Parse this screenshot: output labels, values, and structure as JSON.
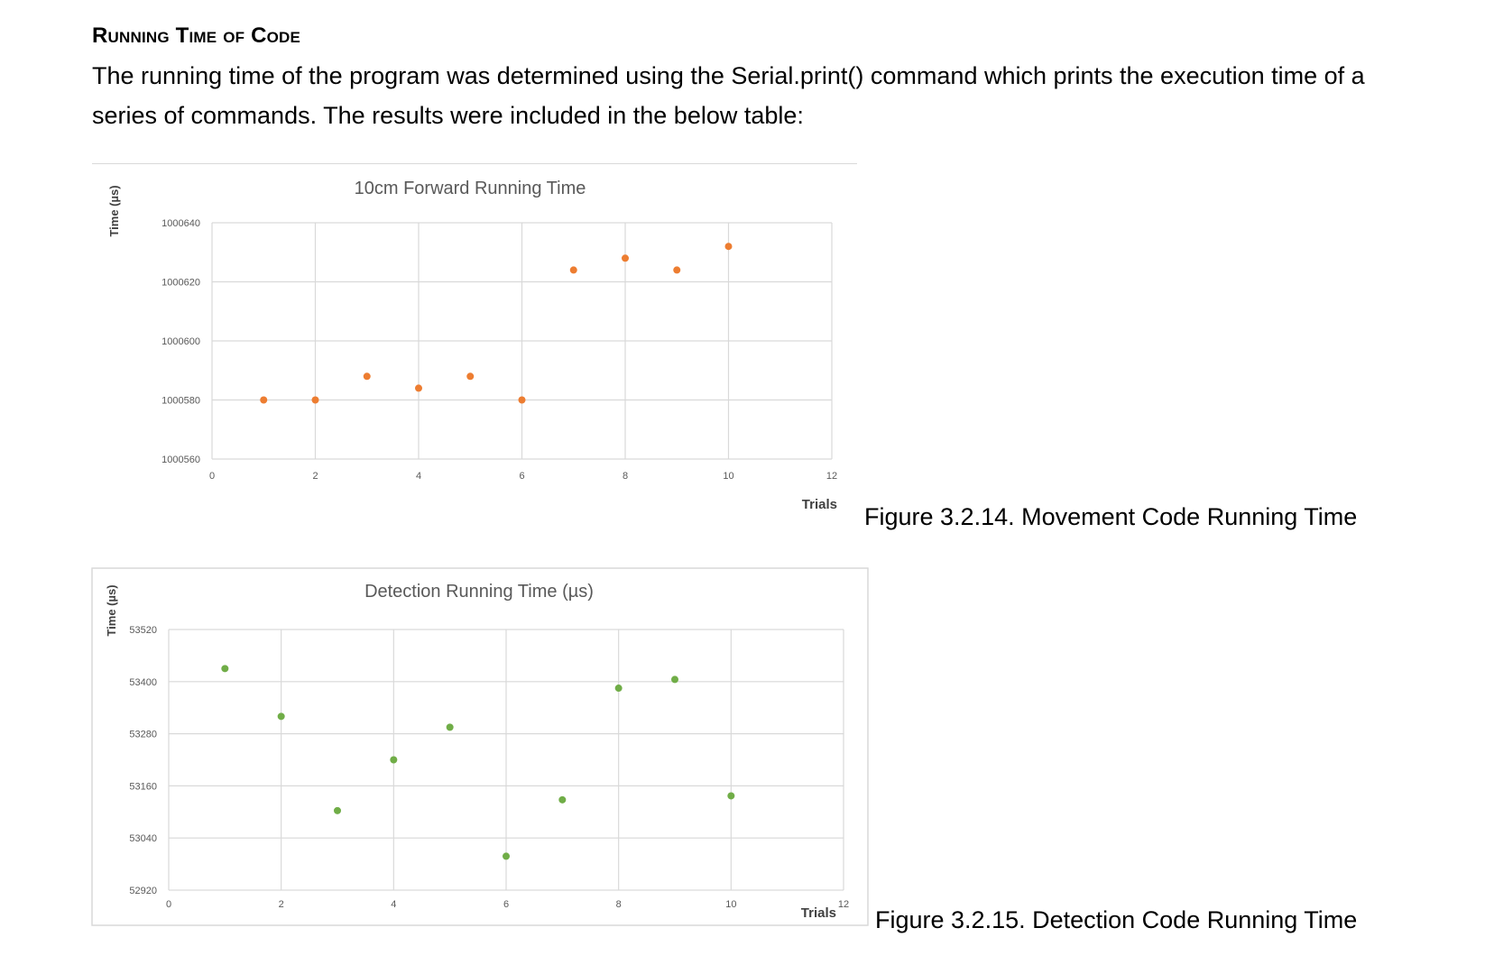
{
  "section": {
    "title": "Running Time of Code"
  },
  "intro": "The running time of the program was determined using the Serial.print() command which prints the execution time of a series of commands. The results were included in the below table:",
  "captions": {
    "figure1": "Figure 3.2.14. Movement Code Running Time",
    "figure2": "Figure 3.2.15. Detection Code Running Time"
  },
  "colors": {
    "series1": "#ED7D31",
    "series2": "#70AD47",
    "grid": "#d9d9d9",
    "axisText": "#595959"
  },
  "chart_data": [
    {
      "type": "scatter",
      "title": "10cm Forward Running Time",
      "xlabel": "Trials",
      "ylabel": "Time (µs)",
      "xlim": [
        0,
        12
      ],
      "ylim": [
        1000560,
        1000640
      ],
      "xticks": [
        0,
        2,
        4,
        6,
        8,
        10,
        12
      ],
      "yticks": [
        1000560,
        1000580,
        1000600,
        1000620,
        1000640
      ],
      "grid": true,
      "legend": "none",
      "series": [
        {
          "x": [
            1,
            2,
            3,
            4,
            5,
            6,
            7,
            8,
            9,
            10
          ],
          "y": [
            1000580,
            1000580,
            1000588,
            1000584,
            1000588,
            1000580,
            1000624,
            1000628,
            1000624,
            1000632
          ]
        }
      ]
    },
    {
      "type": "scatter",
      "title": "Detection Running Time (µs)",
      "xlabel": "Trials",
      "ylabel": "Time (µs)",
      "xlim": [
        0,
        12
      ],
      "ylim": [
        52920,
        53520
      ],
      "xticks": [
        0,
        2,
        4,
        6,
        8,
        10,
        12
      ],
      "yticks": [
        52920,
        53040,
        53160,
        53280,
        53400,
        53520
      ],
      "grid": true,
      "legend": "none",
      "series": [
        {
          "x": [
            1,
            2,
            3,
            4,
            5,
            6,
            7,
            8,
            9,
            10
          ],
          "y": [
            53430,
            53320,
            53103,
            53220,
            53295,
            52998,
            53128,
            53385,
            53405,
            53137
          ]
        }
      ]
    }
  ]
}
